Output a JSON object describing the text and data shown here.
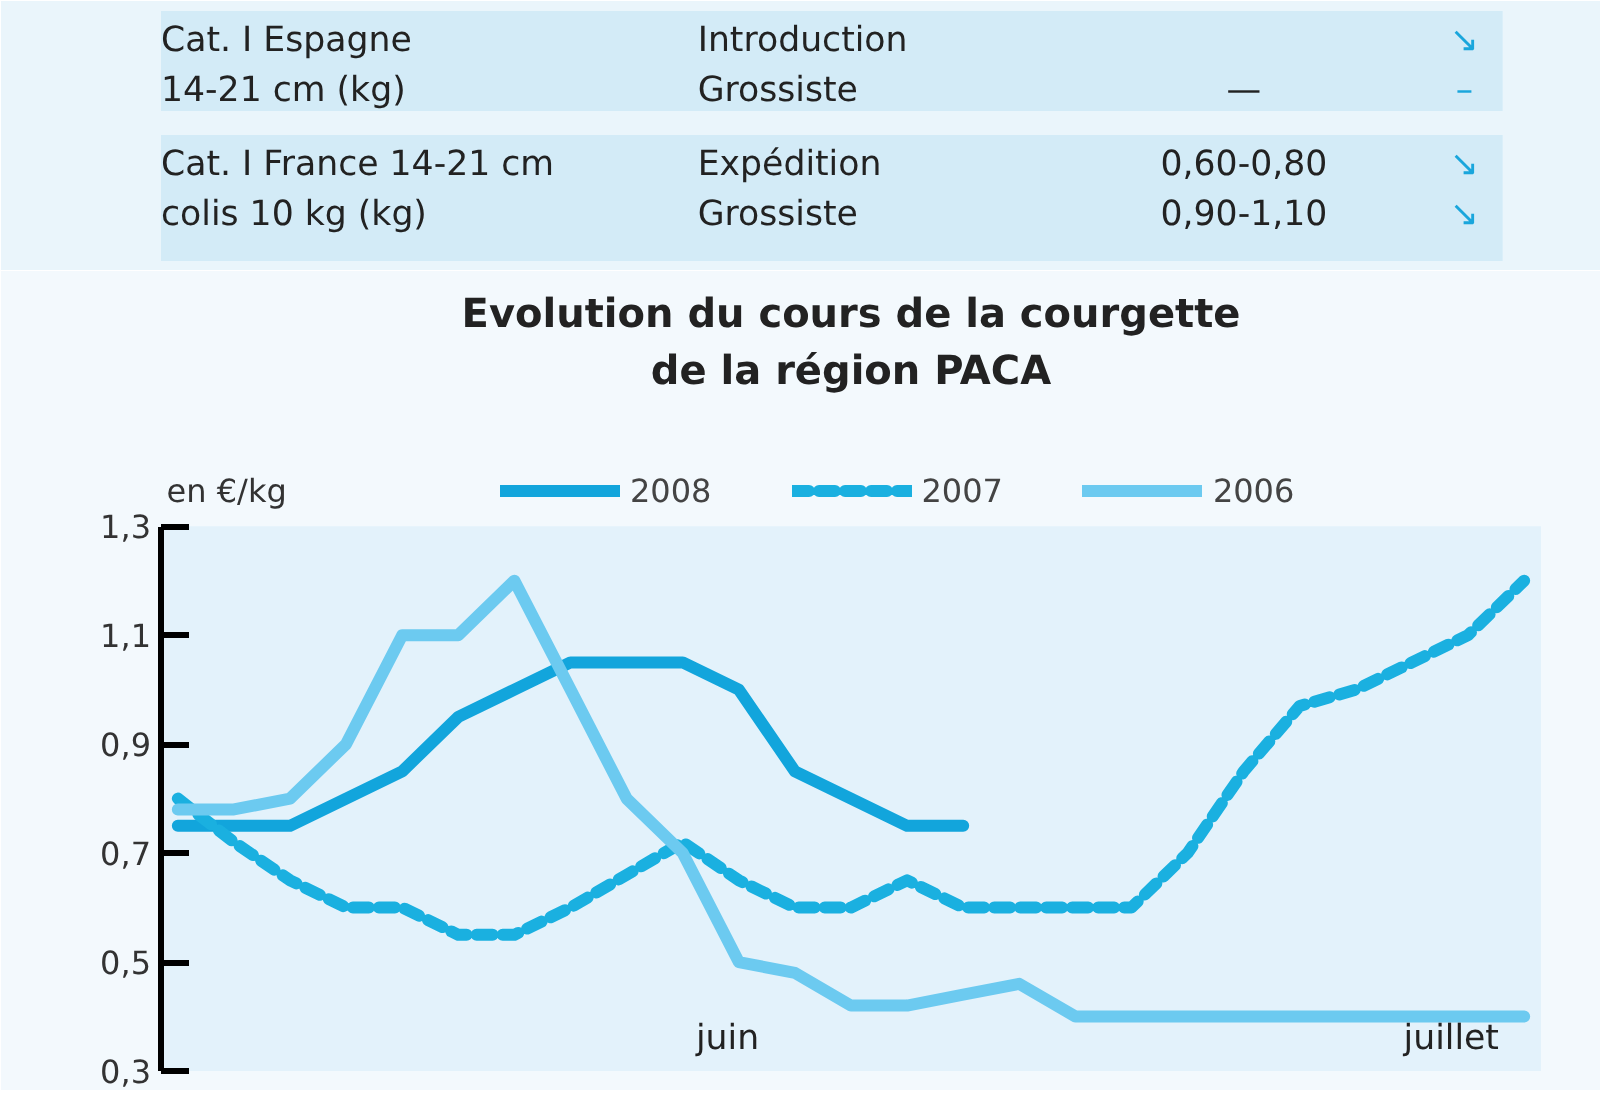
{
  "chart_data": [
    {
      "type": "other",
      "annotations": [
        "Cat. I Espagne\n14-21 cm (kg)",
        "Introduction\nGrossiste",
        "\n—",
        "↘\n–",
        "Cat. I France 14-21 cm\ncolis 10 kg (kg)",
        "Expédition\nGrossiste",
        "0,60-0,80\n0,90-1,10",
        "↘\n↘"
      ]
    },
    {
      "type": "line",
      "title": "Evolution du cours de la courgette\nde la région PACA",
      "ylabel": "en €/kg",
      "categories": [
        null,
        null,
        null,
        null,
        null,
        null,
        null,
        null,
        null,
        null,
        null,
        null,
        null,
        null,
        null,
        null,
        null,
        null,
        null,
        null,
        null,
        null,
        null,
        null,
        null
      ],
      "series": [
        {
          "name": "2008",
          "color": "#12a5dc",
          "line_style": "solid",
          "values": [
            0.75,
            0.75,
            0.75,
            0.8,
            0.85,
            0.95,
            1.0,
            1.05,
            1.05,
            1.05,
            1.0,
            0.85,
            0.8,
            0.75,
            0.75,
            null,
            null,
            null,
            null,
            null,
            null,
            null,
            null,
            null,
            null
          ]
        },
        {
          "name": "2007",
          "color": "#1ab0e0",
          "line_style": "dashed",
          "values": [
            0.8,
            0.72,
            0.65,
            0.6,
            0.6,
            0.55,
            0.55,
            0.6,
            0.66,
            0.72,
            0.65,
            0.6,
            0.6,
            0.65,
            0.6,
            0.6,
            0.6,
            0.6,
            0.7,
            0.85,
            0.97,
            1.0,
            1.05,
            1.1,
            1.2
          ]
        },
        {
          "name": "2006",
          "color": "#6ccaf0",
          "line_style": "solid",
          "values": [
            0.78,
            0.78,
            0.8,
            0.9,
            1.1,
            1.1,
            1.2,
            1.0,
            0.8,
            0.7,
            0.5,
            0.48,
            0.42,
            0.42,
            0.44,
            0.46,
            0.4,
            0.4,
            0.4,
            0.4,
            0.4,
            0.4,
            0.4,
            0.4,
            0.4
          ]
        }
      ],
      "ylim": [
        0.3,
        1.3
      ],
      "yticks": [
        {
          "value": 0.3,
          "label": "0,3"
        },
        {
          "value": 0.5,
          "label": "0,5"
        },
        {
          "value": 0.7,
          "label": "0,7"
        },
        {
          "value": 0.9,
          "label": "0,9"
        },
        {
          "value": 1.1,
          "label": "1,1"
        },
        {
          "value": 1.3,
          "label": "1,3"
        }
      ],
      "annotations": [
        "juin",
        "juillet"
      ],
      "grid": false,
      "legend": "top",
      "tick_labels": "y"
    }
  ]
}
